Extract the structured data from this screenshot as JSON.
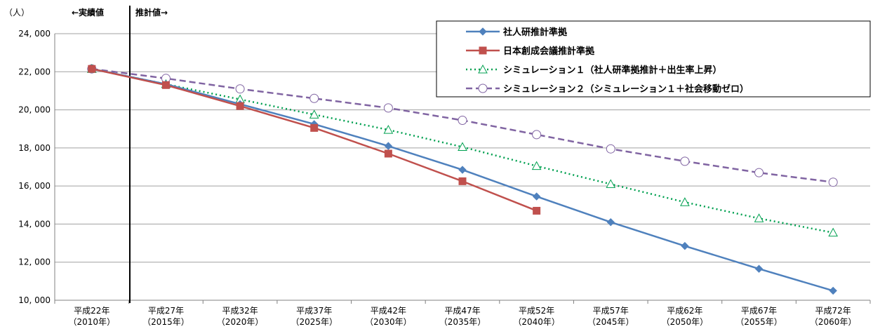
{
  "chart_data": {
    "type": "line",
    "ylabel": "（人）",
    "ylim": [
      10000,
      24000
    ],
    "yticks": [
      10000,
      12000,
      14000,
      16000,
      18000,
      20000,
      22000,
      24000
    ],
    "ytick_labels": [
      "10, 000",
      "12, 000",
      "14, 000",
      "16, 000",
      "18, 000",
      "20, 000",
      "22, 000",
      "24, 000"
    ],
    "categories": [
      {
        "line1": "平成22年",
        "line2": "（2010年）"
      },
      {
        "line1": "平成27年",
        "line2": "（2015年）"
      },
      {
        "line1": "平成32年",
        "line2": "（2020年）"
      },
      {
        "line1": "平成37年",
        "line2": "（2025年）"
      },
      {
        "line1": "平成42年",
        "line2": "（2030年）"
      },
      {
        "line1": "平成47年",
        "line2": "（2035年）"
      },
      {
        "line1": "平成52年",
        "line2": "（2040年）"
      },
      {
        "line1": "平成57年",
        "line2": "（2045年）"
      },
      {
        "line1": "平成62年",
        "line2": "（2050年）"
      },
      {
        "line1": "平成67年",
        "line2": "（2055年）"
      },
      {
        "line1": "平成72年",
        "line2": "（2060年）"
      }
    ],
    "annotations": {
      "actual": "←実績値",
      "estimate": "推計値→"
    },
    "grid": true,
    "legend_position": "top-right",
    "series": [
      {
        "name": "社人研推計準拠",
        "color": "#4f81bd",
        "marker": "diamond",
        "style": "solid",
        "values": [
          22150,
          21350,
          20300,
          19250,
          18100,
          16850,
          15450,
          14100,
          12850,
          11650,
          10500
        ]
      },
      {
        "name": "日本創成会議推計準拠",
        "color": "#c0504d",
        "marker": "square",
        "style": "solid",
        "values": [
          22150,
          21300,
          20200,
          19050,
          17700,
          16250,
          14700,
          null,
          null,
          null,
          null
        ]
      },
      {
        "name": "シミュレーション１（社人研準拠推計＋出生率上昇）",
        "color": "#00a050",
        "marker": "triangle",
        "style": "dotted",
        "values": [
          22150,
          21350,
          20550,
          19750,
          18950,
          18050,
          17050,
          16100,
          15150,
          14300,
          13550
        ]
      },
      {
        "name": "シミュレーション２（シミュレーション１＋社会移動ゼロ）",
        "color": "#8064a2",
        "marker": "circle",
        "style": "dashed",
        "values": [
          22150,
          21650,
          21100,
          20600,
          20100,
          19450,
          18700,
          17950,
          17300,
          16700,
          16200
        ]
      }
    ]
  }
}
